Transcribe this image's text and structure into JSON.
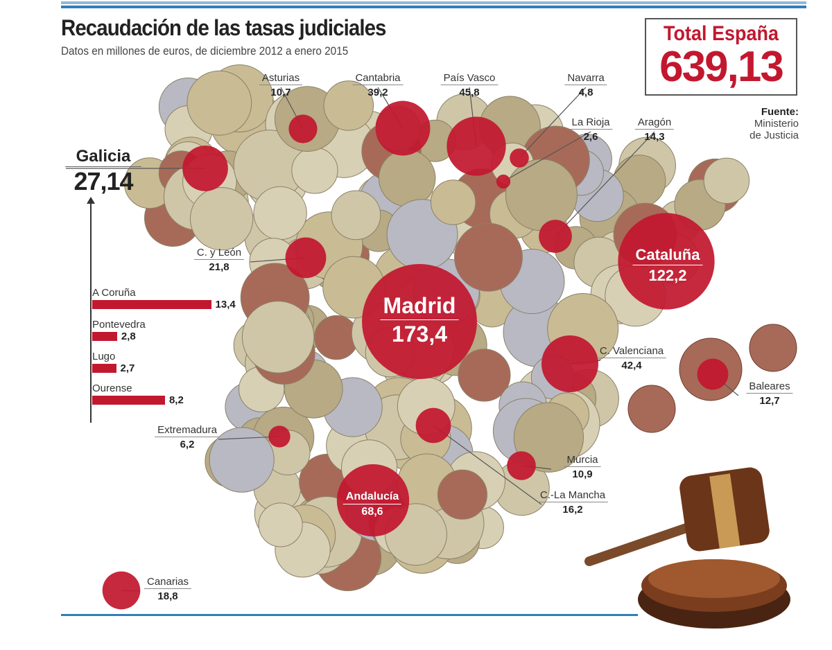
{
  "header": {
    "title": "Recaudación de las tasas judiciales",
    "subtitle": "Datos en millones de euros, de diciembre 2012 a enero 2015"
  },
  "total": {
    "label": "Total España",
    "value": "639,13"
  },
  "source": {
    "label": "Fuente:",
    "line1": "Ministerio",
    "line2": "de Justicia"
  },
  "colors": {
    "bubble": "#c2182f",
    "rule": "#2f7fb8"
  },
  "chart_data": {
    "type": "bubble-map",
    "title": "Recaudación de las tasas judiciales",
    "unit": "millones de euros",
    "regions": [
      {
        "name": "Galicia",
        "value": 27.14,
        "label": "27,14"
      },
      {
        "name": "Asturias",
        "value": 10.7,
        "label": "10,7"
      },
      {
        "name": "Cantabria",
        "value": 39.2,
        "label": "39,2"
      },
      {
        "name": "País Vasco",
        "value": 45.8,
        "label": "45,8"
      },
      {
        "name": "Navarra",
        "value": 4.8,
        "label": "4,8"
      },
      {
        "name": "La Rioja",
        "value": 2.6,
        "label": "2,6"
      },
      {
        "name": "Aragón",
        "value": 14.3,
        "label": "14,3"
      },
      {
        "name": "C. y León",
        "value": 21.8,
        "label": "21,8"
      },
      {
        "name": "Cataluña",
        "value": 122.2,
        "label": "122,2"
      },
      {
        "name": "Madrid",
        "value": 173.4,
        "label": "173,4"
      },
      {
        "name": "C. Valenciana",
        "value": 42.4,
        "label": "42,4"
      },
      {
        "name": "Baleares",
        "value": 12.7,
        "label": "12,7"
      },
      {
        "name": "Extremadura",
        "value": 6.2,
        "label": "6,2"
      },
      {
        "name": "C.-La Mancha",
        "value": 16.2,
        "label": "16,2"
      },
      {
        "name": "Murcia",
        "value": 10.9,
        "label": "10,9"
      },
      {
        "name": "Andalucía",
        "value": 68.6,
        "label": "68,6"
      },
      {
        "name": "Canarias",
        "value": 18.8,
        "label": "18,8"
      }
    ],
    "galicia_provinces": {
      "type": "bar",
      "categories": [
        "A Coruña",
        "Pontevedra",
        "Lugo",
        "Ourense"
      ],
      "values": [
        13.4,
        2.8,
        2.7,
        8.2
      ],
      "labels": [
        "13,4",
        "2,8",
        "2,7",
        "8,2"
      ]
    }
  }
}
